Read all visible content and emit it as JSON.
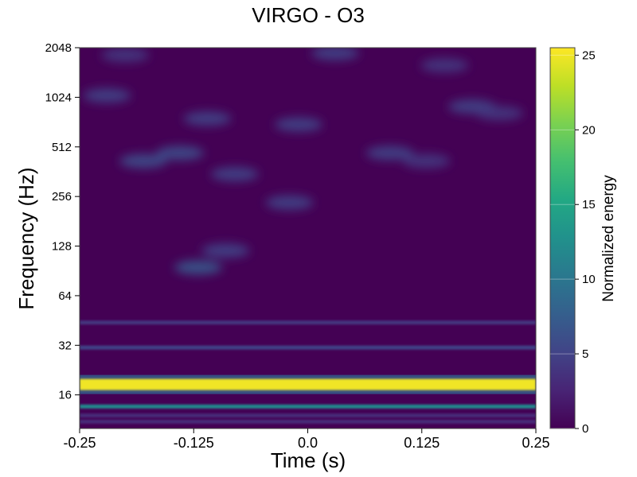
{
  "chart_data": {
    "type": "heatmap",
    "title": "VIRGO - O3",
    "xlabel": "Time (s)",
    "ylabel": "Frequency (Hz)",
    "x_scale": "linear",
    "y_scale": "log2",
    "xlim": [
      -0.25,
      0.25
    ],
    "ylim": [
      10,
      2048
    ],
    "x_ticks": [
      -0.25,
      -0.125,
      0.0,
      0.125,
      0.25
    ],
    "x_tick_labels": [
      "-0.25",
      "-0.125",
      "0.0",
      "0.125",
      "0.25"
    ],
    "y_ticks": [
      16,
      32,
      64,
      128,
      256,
      512,
      1024,
      2048
    ],
    "y_tick_labels": [
      "16",
      "32",
      "64",
      "128",
      "256",
      "512",
      "1024",
      "2048"
    ],
    "colorbar": {
      "label": "Normalized energy",
      "colormap": "viridis",
      "range": [
        0,
        25.5
      ],
      "ticks": [
        0,
        5,
        10,
        15,
        20,
        25
      ],
      "tick_labels": [
        "0",
        "5",
        "10",
        "15",
        "20",
        "25"
      ]
    },
    "bands": [
      {
        "frequency": 18.5,
        "energy": 25
      },
      {
        "frequency": 13.6,
        "energy": 12
      },
      {
        "frequency": 31,
        "energy": 5
      },
      {
        "frequency": 44,
        "energy": 4
      },
      {
        "frequency": 12,
        "energy": 3
      },
      {
        "frequency": 11,
        "energy": 3
      }
    ],
    "blobs": [
      {
        "time": -0.12,
        "frequency": 95,
        "energy": 7
      },
      {
        "time": -0.09,
        "frequency": 120,
        "energy": 5
      },
      {
        "time": -0.18,
        "frequency": 420,
        "energy": 6
      },
      {
        "time": -0.14,
        "frequency": 470,
        "energy": 6
      },
      {
        "time": -0.08,
        "frequency": 350,
        "energy": 5
      },
      {
        "time": -0.02,
        "frequency": 235,
        "energy": 5
      },
      {
        "time": 0.09,
        "frequency": 470,
        "energy": 5
      },
      {
        "time": 0.13,
        "frequency": 420,
        "energy": 4
      },
      {
        "time": -0.22,
        "frequency": 1050,
        "energy": 5
      },
      {
        "time": -0.11,
        "frequency": 760,
        "energy": 5
      },
      {
        "time": -0.01,
        "frequency": 700,
        "energy": 5
      },
      {
        "time": 0.18,
        "frequency": 900,
        "energy": 5
      },
      {
        "time": 0.21,
        "frequency": 820,
        "energy": 4
      },
      {
        "time": 0.03,
        "frequency": 1900,
        "energy": 5
      },
      {
        "time": -0.2,
        "frequency": 1850,
        "energy": 4
      },
      {
        "time": 0.15,
        "frequency": 1600,
        "energy": 4
      }
    ],
    "colors": {
      "background": "#440154",
      "peak": "#fde725"
    }
  }
}
